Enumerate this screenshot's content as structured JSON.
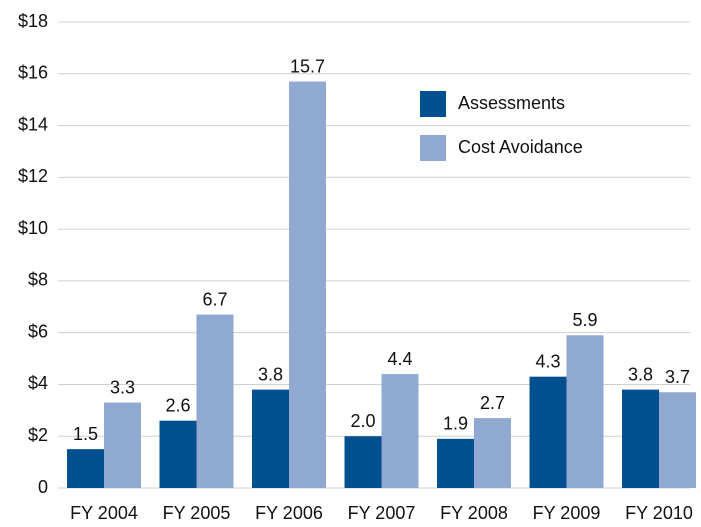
{
  "chart_data": {
    "type": "bar",
    "categories": [
      "FY 2004",
      "FY 2005",
      "FY 2006",
      "FY 2007",
      "FY 2008",
      "FY 2009",
      "FY 2010"
    ],
    "series": [
      {
        "name": "Assessments",
        "color": "#00508f",
        "values": [
          1.5,
          2.6,
          3.8,
          2.0,
          1.9,
          4.3,
          3.8
        ],
        "value_labels": [
          "1.5",
          "2.6",
          "3.8",
          "2.0",
          "1.9",
          "4.3",
          "3.8"
        ]
      },
      {
        "name": "Cost Avoidance",
        "color": "#8fa9d1",
        "values": [
          3.3,
          6.7,
          15.7,
          4.4,
          2.7,
          5.9,
          3.7
        ],
        "value_labels": [
          "3.3",
          "6.7",
          "15.7",
          "4.4",
          "2.7",
          "5.9",
          "3.7"
        ]
      }
    ],
    "ylim": [
      0,
      18
    ],
    "yticks": [
      0,
      {
        "value": 2,
        "label": "$2"
      },
      {
        "value": 4,
        "label": "$4"
      },
      {
        "value": 6,
        "label": "$6"
      },
      {
        "value": 8,
        "label": "$8"
      },
      {
        "value": 10,
        "label": "$10"
      },
      {
        "value": 12,
        "label": "$12"
      },
      {
        "value": 14,
        "label": "$14"
      },
      {
        "value": 16,
        "label": "$16"
      },
      {
        "value": 18,
        "label": "$18"
      }
    ],
    "grid": true
  }
}
